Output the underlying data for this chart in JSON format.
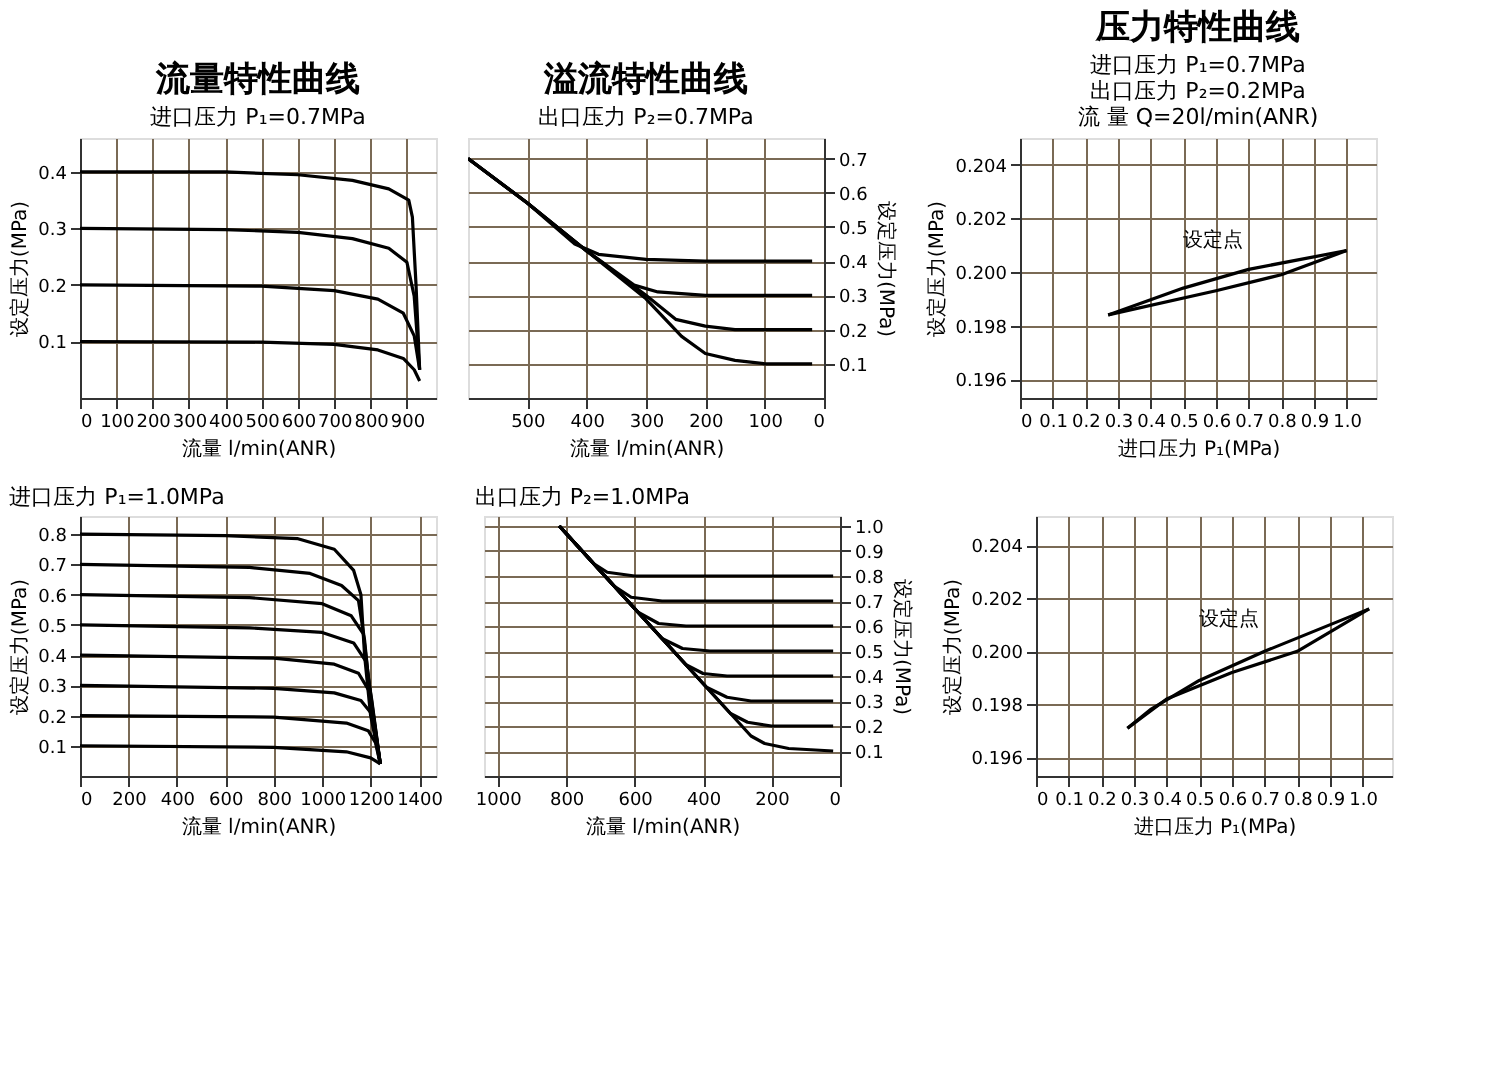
{
  "chart_data": [
    {
      "type": "line",
      "title": "流量特性曲线",
      "subtitle": "进口压力 P₁=0.7MPa",
      "xlabel": "流量 l/min(ANR)",
      "ylabel": "设定压力(MPa)",
      "xlim": [
        0,
        980
      ],
      "ylim": [
        0,
        0.46
      ],
      "xticks": [
        0,
        100,
        200,
        300,
        400,
        500,
        600,
        700,
        800,
        900
      ],
      "yticks": [
        0.1,
        0.2,
        0.3,
        0.4
      ],
      "grid": true,
      "marker": "none",
      "line_style": "solid",
      "series": [
        {
          "color": "#000000",
          "x": [
            0,
            400,
            600,
            750,
            850,
            905,
            915,
            925,
            935
          ],
          "values": [
            0.4,
            0.4,
            0.395,
            0.385,
            0.37,
            0.35,
            0.32,
            0.2,
            0.05
          ]
        },
        {
          "color": "#000000",
          "x": [
            0,
            400,
            600,
            750,
            850,
            900,
            920,
            935
          ],
          "values": [
            0.3,
            0.298,
            0.293,
            0.282,
            0.265,
            0.24,
            0.18,
            0.05
          ]
        },
        {
          "color": "#000000",
          "x": [
            0,
            500,
            700,
            820,
            890,
            920,
            935
          ],
          "values": [
            0.2,
            0.198,
            0.19,
            0.175,
            0.15,
            0.11,
            0.05
          ]
        },
        {
          "color": "#000000",
          "x": [
            0,
            500,
            700,
            820,
            890,
            920,
            935
          ],
          "values": [
            0.1,
            0.099,
            0.095,
            0.085,
            0.07,
            0.05,
            0.03
          ]
        }
      ]
    },
    {
      "type": "line",
      "title": "溢流特性曲线",
      "subtitle": "出口压力 P₂=0.7MPa",
      "xlabel": "流量 l/min(ANR)",
      "y2label": "设定压力(MPa)",
      "xlim": [
        600,
        0
      ],
      "y2lim": [
        0,
        0.76
      ],
      "xticks": [
        500,
        400,
        300,
        200,
        100,
        0
      ],
      "y2ticks": [
        0.1,
        0.2,
        0.3,
        0.4,
        0.5,
        0.6,
        0.7
      ],
      "grid": true,
      "marker": "none",
      "line_style": "solid",
      "series": [
        {
          "axis": "y2",
          "color": "#000000",
          "x": [
            600,
            500,
            420,
            380,
            300,
            200,
            20
          ],
          "values": [
            0.7,
            0.57,
            0.45,
            0.42,
            0.405,
            0.4,
            0.4
          ]
        },
        {
          "axis": "y2",
          "color": "#000000",
          "x": [
            600,
            500,
            400,
            320,
            280,
            200,
            20
          ],
          "values": [
            0.7,
            0.57,
            0.43,
            0.33,
            0.31,
            0.3,
            0.3
          ]
        },
        {
          "axis": "y2",
          "color": "#000000",
          "x": [
            600,
            500,
            400,
            300,
            250,
            200,
            150,
            20
          ],
          "values": [
            0.7,
            0.57,
            0.43,
            0.3,
            0.23,
            0.21,
            0.2,
            0.2
          ]
        },
        {
          "axis": "y2",
          "color": "#000000",
          "x": [
            600,
            500,
            400,
            300,
            240,
            200,
            150,
            100,
            20
          ],
          "values": [
            0.7,
            0.57,
            0.43,
            0.29,
            0.18,
            0.13,
            0.11,
            0.1,
            0.1
          ]
        }
      ]
    },
    {
      "type": "line",
      "title": "压力特性曲线",
      "xlabel": "进口压力 P₁(MPa)",
      "ylabel": "设定压力(MPa)",
      "xlim": [
        0,
        1.09
      ],
      "ylim": [
        0.1953,
        0.205
      ],
      "xticks": [
        0,
        0.1,
        0.2,
        0.3,
        0.4,
        0.5,
        0.6,
        0.7,
        0.8,
        0.9,
        {
          "value": 1,
          "label": "1.0"
        }
      ],
      "yticks": [
        0.196,
        0.198,
        {
          "value": 0.2,
          "label": "0.200"
        },
        0.202,
        0.204
      ],
      "grid": true,
      "marker": "none",
      "line_style": "solid",
      "annotations": [
        "进口压力 P₁=0.7MPa",
        "出口压力 P₂=0.2MPa",
        "流    量 Q=20l/min(ANR)",
        {
          "text": "设定点",
          "x": 0.7,
          "y": 0.2
        }
      ],
      "series": [
        {
          "color": "#000000",
          "x": [
            0.27,
            0.5,
            0.7,
            1.0
          ],
          "values": [
            0.1984,
            0.1994,
            0.2001,
            0.2008
          ]
        },
        {
          "color": "#000000",
          "x": [
            1.0,
            0.8,
            0.6,
            0.27
          ],
          "values": [
            0.2008,
            0.1999,
            0.1993,
            0.1984
          ]
        }
      ]
    },
    {
      "type": "line",
      "subtitle": "进口压力 P₁=1.0MPa",
      "xlabel": "流量 l/min(ANR)",
      "ylabel": "设定压力(MPa)",
      "xlim": [
        0,
        1470
      ],
      "ylim": [
        0,
        0.86
      ],
      "xticks": [
        0,
        200,
        400,
        600,
        800,
        1000,
        1200,
        1400
      ],
      "yticks": [
        0.1,
        0.2,
        0.3,
        0.4,
        0.5,
        0.6,
        0.7,
        0.8
      ],
      "grid": true,
      "marker": "none",
      "line_style": "solid",
      "series": [
        {
          "color": "#000000",
          "x": [
            0,
            600,
            900,
            1050,
            1130,
            1160,
            1175,
            1200,
            1240
          ],
          "values": [
            0.8,
            0.795,
            0.785,
            0.75,
            0.68,
            0.6,
            0.4,
            0.2,
            0.04
          ]
        },
        {
          "color": "#000000",
          "x": [
            0,
            700,
            950,
            1080,
            1150,
            1175,
            1200,
            1240
          ],
          "values": [
            0.7,
            0.69,
            0.67,
            0.63,
            0.58,
            0.45,
            0.25,
            0.04
          ]
        },
        {
          "color": "#000000",
          "x": [
            0,
            700,
            1000,
            1120,
            1170,
            1195,
            1240
          ],
          "values": [
            0.6,
            0.59,
            0.57,
            0.53,
            0.47,
            0.3,
            0.04
          ]
        },
        {
          "color": "#000000",
          "x": [
            0,
            700,
            1000,
            1130,
            1180,
            1205,
            1240
          ],
          "values": [
            0.5,
            0.49,
            0.475,
            0.44,
            0.38,
            0.25,
            0.04
          ]
        },
        {
          "color": "#000000",
          "x": [
            0,
            800,
            1050,
            1150,
            1195,
            1220,
            1240
          ],
          "values": [
            0.4,
            0.39,
            0.37,
            0.34,
            0.28,
            0.15,
            0.04
          ]
        },
        {
          "color": "#000000",
          "x": [
            0,
            800,
            1050,
            1160,
            1210,
            1240
          ],
          "values": [
            0.3,
            0.29,
            0.275,
            0.25,
            0.2,
            0.04
          ]
        },
        {
          "color": "#000000",
          "x": [
            0,
            800,
            1100,
            1190,
            1220,
            1240
          ],
          "values": [
            0.2,
            0.195,
            0.175,
            0.15,
            0.11,
            0.04
          ]
        },
        {
          "color": "#000000",
          "x": [
            0,
            800,
            1100,
            1200,
            1240
          ],
          "values": [
            0.1,
            0.095,
            0.08,
            0.06,
            0.04
          ]
        }
      ]
    },
    {
      "type": "line",
      "subtitle": "出口压力 P₂=1.0MPa",
      "xlabel": "流量 l/min(ANR)",
      "y2label": "设定压力(MPa)",
      "xlim": [
        1040,
        0
      ],
      "y2lim": [
        0,
        1.04
      ],
      "xticks": [
        1000,
        800,
        600,
        400,
        200,
        0
      ],
      "y2ticks": [
        0.1,
        0.2,
        0.3,
        0.4,
        0.5,
        0.6,
        0.7,
        0.8,
        0.9,
        {
          "value": 1,
          "label": "1.0"
        }
      ],
      "grid": true,
      "marker": "none",
      "line_style": "solid",
      "series": [
        {
          "axis": "y2",
          "color": "#000000",
          "x": [
            820,
            720,
            680,
            600,
            20
          ],
          "values": [
            1.0,
            0.85,
            0.815,
            0.8,
            0.8
          ]
        },
        {
          "axis": "y2",
          "color": "#000000",
          "x": [
            820,
            660,
            610,
            520,
            20
          ],
          "values": [
            1.0,
            0.76,
            0.715,
            0.7,
            0.7
          ]
        },
        {
          "axis": "y2",
          "color": "#000000",
          "x": [
            820,
            590,
            530,
            450,
            20
          ],
          "values": [
            1.0,
            0.655,
            0.61,
            0.6,
            0.6
          ]
        },
        {
          "axis": "y2",
          "color": "#000000",
          "x": [
            820,
            520,
            460,
            380,
            20
          ],
          "values": [
            1.0,
            0.55,
            0.51,
            0.5,
            0.5
          ]
        },
        {
          "axis": "y2",
          "color": "#000000",
          "x": [
            820,
            450,
            400,
            330,
            20
          ],
          "values": [
            1.0,
            0.445,
            0.41,
            0.4,
            0.4
          ]
        },
        {
          "axis": "y2",
          "color": "#000000",
          "x": [
            820,
            390,
            330,
            260,
            20
          ],
          "values": [
            1.0,
            0.355,
            0.315,
            0.3,
            0.3
          ]
        },
        {
          "axis": "y2",
          "color": "#000000",
          "x": [
            820,
            320,
            270,
            200,
            20
          ],
          "values": [
            1.0,
            0.25,
            0.215,
            0.2,
            0.2
          ]
        },
        {
          "axis": "y2",
          "color": "#000000",
          "x": [
            820,
            260,
            220,
            150,
            20
          ],
          "values": [
            1.0,
            0.16,
            0.13,
            0.11,
            0.1
          ]
        }
      ]
    },
    {
      "type": "line",
      "xlabel": "进口压力 P₁(MPa)",
      "ylabel": "设定压力(MPa)",
      "xlim": [
        0,
        1.09
      ],
      "ylim": [
        0.1953,
        0.2051
      ],
      "xticks": [
        0,
        0.1,
        0.2,
        0.3,
        0.4,
        0.5,
        0.6,
        0.7,
        0.8,
        0.9,
        {
          "value": 1,
          "label": "1.0"
        }
      ],
      "yticks": [
        0.196,
        0.198,
        {
          "value": 0.2,
          "label": "0.200"
        },
        0.202,
        0.204
      ],
      "grid": true,
      "marker": "none",
      "line_style": "solid",
      "annotations": [
        {
          "text": "设定点",
          "x": 0.7,
          "y": 0.2
        }
      ],
      "series": [
        {
          "color": "#000000",
          "x": [
            0.28,
            0.35,
            0.5,
            0.7,
            1.02
          ],
          "values": [
            0.1971,
            0.1978,
            0.1989,
            0.2,
            0.2016
          ]
        },
        {
          "color": "#000000",
          "x": [
            1.02,
            0.8,
            0.6,
            0.4,
            0.28
          ],
          "values": [
            0.2016,
            0.2,
            0.1992,
            0.1982,
            0.1971
          ]
        }
      ]
    }
  ]
}
